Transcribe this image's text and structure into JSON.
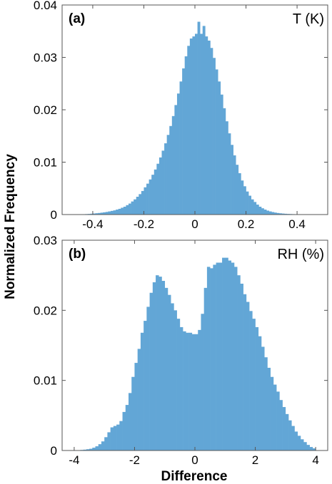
{
  "ylabel": "Normalized Frequency",
  "xlabel": "Difference",
  "chart_data": [
    {
      "type": "bar",
      "panel_label": "(a)",
      "title": "T (K)",
      "bar_color": "#62a6d6",
      "xlim": [
        -0.52,
        0.52
      ],
      "ylim": [
        0,
        0.04
      ],
      "xticks": [
        -0.4,
        -0.2,
        0,
        0.2,
        0.4
      ],
      "xtick_labels": [
        "-0.4",
        "-0.2",
        "0",
        "0.2",
        "0.4"
      ],
      "yticks": [
        0,
        0.01,
        0.02,
        0.03,
        0.04
      ],
      "ytick_labels": [
        "0",
        "0.01",
        "0.02",
        "0.03",
        "0.04"
      ],
      "bin_width": 0.01,
      "x": [
        -0.475,
        -0.465,
        -0.455,
        -0.445,
        -0.435,
        -0.425,
        -0.415,
        -0.405,
        -0.395,
        -0.385,
        -0.375,
        -0.365,
        -0.355,
        -0.345,
        -0.335,
        -0.325,
        -0.315,
        -0.305,
        -0.295,
        -0.285,
        -0.275,
        -0.265,
        -0.255,
        -0.245,
        -0.235,
        -0.225,
        -0.215,
        -0.205,
        -0.195,
        -0.185,
        -0.175,
        -0.165,
        -0.155,
        -0.145,
        -0.135,
        -0.125,
        -0.115,
        -0.105,
        -0.095,
        -0.085,
        -0.075,
        -0.065,
        -0.055,
        -0.045,
        -0.035,
        -0.025,
        -0.015,
        -0.005,
        0.005,
        0.015,
        0.025,
        0.035,
        0.045,
        0.055,
        0.065,
        0.075,
        0.085,
        0.095,
        0.105,
        0.115,
        0.125,
        0.135,
        0.145,
        0.155,
        0.165,
        0.175,
        0.185,
        0.195,
        0.205,
        0.215,
        0.225,
        0.235,
        0.245,
        0.255,
        0.265,
        0.275,
        0.285,
        0.295,
        0.305,
        0.315,
        0.325,
        0.335,
        0.345,
        0.355,
        0.365,
        0.375,
        0.385,
        0.395,
        0.405,
        0.415,
        0.425,
        0.435,
        0.445,
        0.455,
        0.465,
        0.475
      ],
      "values": [
        2e-05,
        3e-05,
        4e-05,
        5e-05,
        7e-05,
        9e-05,
        0.00012,
        0.00016,
        0.0002,
        0.00025,
        0.0003,
        0.00036,
        0.00043,
        0.0005,
        0.0006,
        0.0007,
        0.0008,
        0.00095,
        0.0011,
        0.0013,
        0.0015,
        0.0018,
        0.0021,
        0.0025,
        0.0029,
        0.0034,
        0.0039,
        0.0045,
        0.0052,
        0.0059,
        0.0067,
        0.0076,
        0.0086,
        0.0097,
        0.0109,
        0.0122,
        0.0136,
        0.0152,
        0.0169,
        0.0188,
        0.0209,
        0.0231,
        0.0254,
        0.0279,
        0.0302,
        0.0322,
        0.0336,
        0.034,
        0.0345,
        0.0368,
        0.0345,
        0.036,
        0.034,
        0.0332,
        0.0318,
        0.0299,
        0.0277,
        0.0254,
        0.0229,
        0.0203,
        0.0178,
        0.0155,
        0.0133,
        0.0113,
        0.0095,
        0.0079,
        0.0065,
        0.0054,
        0.0044,
        0.0036,
        0.0029,
        0.0024,
        0.0019,
        0.0015,
        0.0012,
        0.00095,
        0.00075,
        0.0006,
        0.00048,
        0.00038,
        0.0003,
        0.00024,
        0.00019,
        0.00015,
        0.00012,
        0.0001,
        8e-05,
        6e-05,
        5e-05,
        4e-05,
        3e-05,
        2e-05,
        2e-05,
        1e-05,
        1e-05,
        1e-05
      ]
    },
    {
      "type": "bar",
      "panel_label": "(b)",
      "title": "RH (%)",
      "bar_color": "#62a6d6",
      "xlim": [
        -4.4,
        4.4
      ],
      "ylim": [
        0,
        0.03
      ],
      "xticks": [
        -4,
        -2,
        0,
        2,
        4
      ],
      "xtick_labels": [
        "-4",
        "-2",
        "0",
        "2",
        "4"
      ],
      "yticks": [
        0,
        0.01,
        0.02,
        0.03
      ],
      "ytick_labels": [
        "0",
        "0.01",
        "0.02",
        "0.03"
      ],
      "bin_width": 0.1,
      "x": [
        -3.95,
        -3.85,
        -3.75,
        -3.65,
        -3.55,
        -3.45,
        -3.35,
        -3.25,
        -3.15,
        -3.05,
        -2.95,
        -2.85,
        -2.75,
        -2.65,
        -2.55,
        -2.45,
        -2.35,
        -2.25,
        -2.15,
        -2.05,
        -1.95,
        -1.85,
        -1.75,
        -1.65,
        -1.55,
        -1.45,
        -1.35,
        -1.25,
        -1.15,
        -1.05,
        -0.95,
        -0.85,
        -0.75,
        -0.65,
        -0.55,
        -0.45,
        -0.35,
        -0.25,
        -0.15,
        -0.05,
        0.05,
        0.15,
        0.25,
        0.35,
        0.45,
        0.55,
        0.65,
        0.75,
        0.85,
        0.95,
        1.05,
        1.15,
        1.25,
        1.35,
        1.45,
        1.55,
        1.65,
        1.75,
        1.85,
        1.95,
        2.05,
        2.15,
        2.25,
        2.35,
        2.45,
        2.55,
        2.65,
        2.75,
        2.85,
        2.95,
        3.05,
        3.15,
        3.25,
        3.35,
        3.45,
        3.55,
        3.65,
        3.75,
        3.85,
        3.95
      ],
      "values": [
        3e-05,
        5e-05,
        8e-05,
        0.00012,
        0.00018,
        0.00025,
        0.0004,
        0.0006,
        0.0009,
        0.0013,
        0.0019,
        0.0026,
        0.0033,
        0.0035,
        0.0037,
        0.0042,
        0.0055,
        0.0065,
        0.0082,
        0.0105,
        0.0125,
        0.0145,
        0.0168,
        0.0185,
        0.0205,
        0.0225,
        0.024,
        0.025,
        0.0248,
        0.0242,
        0.0232,
        0.0222,
        0.021,
        0.02,
        0.0188,
        0.0176,
        0.017,
        0.0168,
        0.0168,
        0.0166,
        0.0166,
        0.0172,
        0.0195,
        0.0232,
        0.0262,
        0.026,
        0.0265,
        0.0268,
        0.0268,
        0.0275,
        0.0275,
        0.0271,
        0.0268,
        0.0262,
        0.025,
        0.0238,
        0.0223,
        0.0212,
        0.0199,
        0.0188,
        0.0176,
        0.0163,
        0.0148,
        0.0133,
        0.0118,
        0.0105,
        0.0094,
        0.0084,
        0.0072,
        0.0062,
        0.0052,
        0.0043,
        0.0035,
        0.0027,
        0.0021,
        0.0016,
        0.0012,
        0.0008,
        0.0005,
        0.0003
      ]
    }
  ]
}
